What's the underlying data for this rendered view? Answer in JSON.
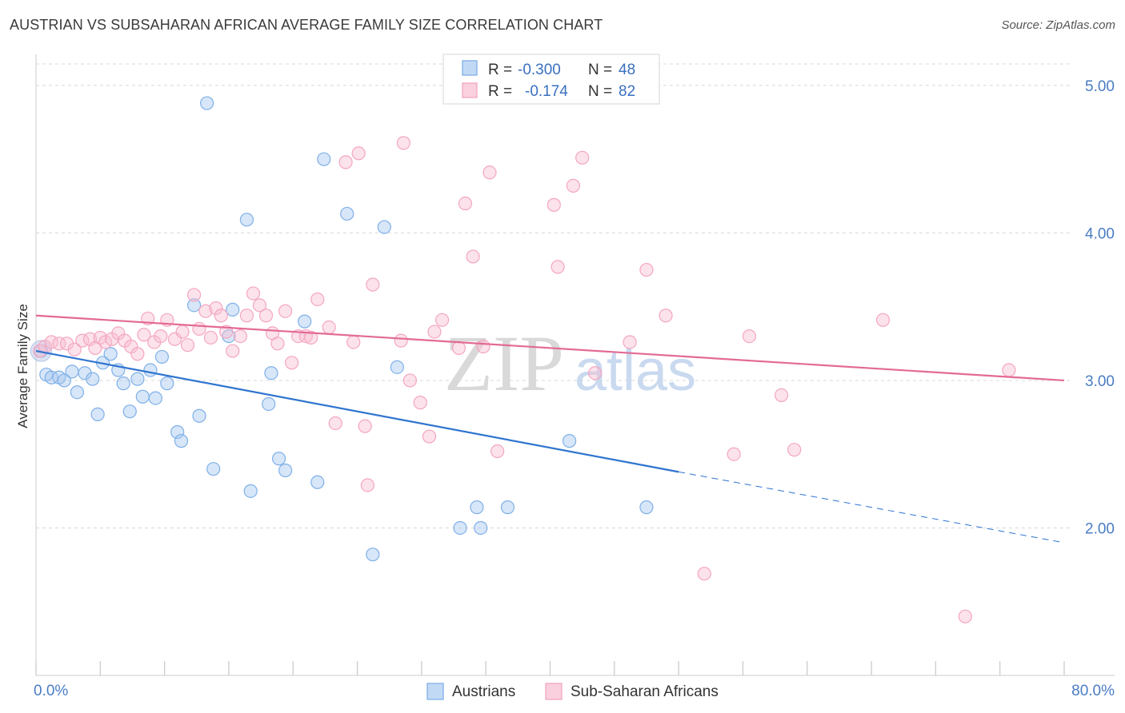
{
  "title": "AUSTRIAN VS SUBSAHARAN AFRICAN AVERAGE FAMILY SIZE CORRELATION CHART",
  "source": "Source: ZipAtlas.com",
  "watermark": {
    "part1": "ZIP",
    "part2": "atlas"
  },
  "legend_top": {
    "rows": [
      {
        "r_label": "R =",
        "r_value": "-0.300",
        "n_label": "N =",
        "n_value": "48",
        "color": "#7fb0e8"
      },
      {
        "r_label": "R =",
        "r_value": "-0.174",
        "n_label": "N =",
        "n_value": "82",
        "color": "#f4a6c0"
      }
    ]
  },
  "legend_bottom": [
    {
      "label": "Austrians",
      "color": "#7fb0e8"
    },
    {
      "label": "Sub-Saharan Africans",
      "color": "#f4a6c0"
    }
  ],
  "chart_data": {
    "type": "scatter",
    "title": "AUSTRIAN VS SUBSAHARAN AFRICAN AVERAGE FAMILY SIZE CORRELATION CHART",
    "xlabel": "",
    "ylabel": "Average Family Size",
    "xlim": [
      0,
      80
    ],
    "ylim": [
      1.0,
      5.2
    ],
    "x_tick_labels": [
      "0.0%",
      "80.0%"
    ],
    "y_ticks": [
      2.0,
      3.0,
      4.0,
      5.0
    ],
    "y_tick_labels": [
      "2.00",
      "3.00",
      "4.00",
      "5.00"
    ],
    "grid": true,
    "legend_position": "top-center",
    "series": [
      {
        "name": "Austrians",
        "color": "#7fb0e8",
        "line_color": "#2f74d0",
        "trend": {
          "x_start": 0,
          "y_start": 3.2,
          "x_solid_end": 50,
          "y_solid_end": 2.38,
          "x_end": 80,
          "y_end": 1.9
        },
        "points": [
          [
            0.4,
            3.2
          ],
          [
            0.8,
            3.04
          ],
          [
            1.2,
            3.02
          ],
          [
            1.8,
            3.02
          ],
          [
            2.2,
            3.0
          ],
          [
            2.8,
            3.06
          ],
          [
            3.2,
            2.92
          ],
          [
            3.8,
            3.05
          ],
          [
            4.4,
            3.01
          ],
          [
            4.8,
            2.77
          ],
          [
            5.2,
            3.12
          ],
          [
            5.8,
            3.18
          ],
          [
            6.4,
            3.07
          ],
          [
            6.8,
            2.98
          ],
          [
            7.3,
            2.79
          ],
          [
            7.9,
            3.01
          ],
          [
            8.3,
            2.89
          ],
          [
            8.9,
            3.07
          ],
          [
            9.3,
            2.88
          ],
          [
            9.8,
            3.16
          ],
          [
            10.2,
            2.98
          ],
          [
            11.0,
            2.65
          ],
          [
            11.3,
            2.59
          ],
          [
            12.3,
            3.51
          ],
          [
            12.7,
            2.76
          ],
          [
            13.3,
            4.88
          ],
          [
            13.8,
            2.4
          ],
          [
            15.0,
            3.3
          ],
          [
            15.3,
            3.48
          ],
          [
            16.4,
            4.09
          ],
          [
            16.7,
            2.25
          ],
          [
            18.1,
            2.84
          ],
          [
            18.3,
            3.05
          ],
          [
            18.9,
            2.47
          ],
          [
            19.4,
            2.39
          ],
          [
            20.9,
            3.4
          ],
          [
            21.9,
            2.31
          ],
          [
            22.4,
            4.5
          ],
          [
            24.2,
            4.13
          ],
          [
            26.2,
            1.82
          ],
          [
            27.1,
            4.04
          ],
          [
            28.1,
            3.09
          ],
          [
            33.0,
            2.0
          ],
          [
            34.3,
            2.14
          ],
          [
            34.6,
            2.0
          ],
          [
            36.7,
            2.14
          ],
          [
            41.5,
            2.59
          ],
          [
            47.5,
            2.14
          ]
        ]
      },
      {
        "name": "Sub-Saharan Africans",
        "color": "#f4a6c0",
        "line_color": "#e36a95",
        "trend": {
          "x_start": 0,
          "y_start": 3.44,
          "x_end": 80,
          "y_end": 3.0
        },
        "points": [
          [
            0.3,
            3.2
          ],
          [
            0.7,
            3.23
          ],
          [
            1.2,
            3.26
          ],
          [
            1.8,
            3.25
          ],
          [
            2.4,
            3.25
          ],
          [
            3.0,
            3.21
          ],
          [
            3.6,
            3.27
          ],
          [
            4.2,
            3.28
          ],
          [
            4.6,
            3.22
          ],
          [
            5.0,
            3.29
          ],
          [
            5.4,
            3.26
          ],
          [
            5.9,
            3.28
          ],
          [
            6.4,
            3.32
          ],
          [
            6.9,
            3.27
          ],
          [
            7.4,
            3.23
          ],
          [
            7.9,
            3.18
          ],
          [
            8.4,
            3.31
          ],
          [
            8.7,
            3.42
          ],
          [
            9.2,
            3.26
          ],
          [
            9.7,
            3.3
          ],
          [
            10.2,
            3.41
          ],
          [
            10.8,
            3.28
          ],
          [
            11.4,
            3.33
          ],
          [
            11.8,
            3.24
          ],
          [
            12.3,
            3.58
          ],
          [
            12.7,
            3.35
          ],
          [
            13.2,
            3.47
          ],
          [
            13.6,
            3.29
          ],
          [
            14.0,
            3.49
          ],
          [
            14.4,
            3.44
          ],
          [
            14.8,
            3.33
          ],
          [
            15.3,
            3.2
          ],
          [
            15.9,
            3.3
          ],
          [
            16.4,
            3.44
          ],
          [
            16.9,
            3.59
          ],
          [
            17.4,
            3.51
          ],
          [
            17.9,
            3.44
          ],
          [
            18.4,
            3.32
          ],
          [
            18.8,
            3.25
          ],
          [
            19.4,
            3.47
          ],
          [
            19.9,
            3.12
          ],
          [
            20.4,
            3.3
          ],
          [
            21.0,
            3.3
          ],
          [
            21.4,
            3.29
          ],
          [
            21.9,
            3.55
          ],
          [
            22.8,
            3.36
          ],
          [
            23.3,
            2.71
          ],
          [
            24.1,
            4.48
          ],
          [
            24.7,
            3.26
          ],
          [
            25.1,
            4.54
          ],
          [
            25.6,
            2.69
          ],
          [
            25.8,
            2.29
          ],
          [
            26.2,
            3.65
          ],
          [
            28.4,
            3.27
          ],
          [
            28.6,
            4.61
          ],
          [
            29.1,
            3.0
          ],
          [
            29.9,
            2.85
          ],
          [
            30.6,
            2.62
          ],
          [
            31.0,
            3.33
          ],
          [
            31.6,
            3.41
          ],
          [
            32.9,
            3.22
          ],
          [
            33.4,
            4.2
          ],
          [
            34.0,
            3.84
          ],
          [
            34.8,
            3.23
          ],
          [
            35.3,
            4.41
          ],
          [
            35.9,
            2.52
          ],
          [
            40.3,
            4.19
          ],
          [
            40.6,
            3.77
          ],
          [
            41.8,
            4.32
          ],
          [
            42.5,
            4.51
          ],
          [
            43.5,
            3.05
          ],
          [
            46.2,
            3.26
          ],
          [
            47.5,
            3.75
          ],
          [
            49.0,
            3.44
          ],
          [
            52.0,
            1.69
          ],
          [
            54.3,
            2.5
          ],
          [
            55.5,
            3.3
          ],
          [
            58.0,
            2.9
          ],
          [
            59.0,
            2.53
          ],
          [
            65.9,
            3.41
          ],
          [
            72.3,
            1.4
          ],
          [
            75.7,
            3.07
          ]
        ]
      }
    ]
  }
}
